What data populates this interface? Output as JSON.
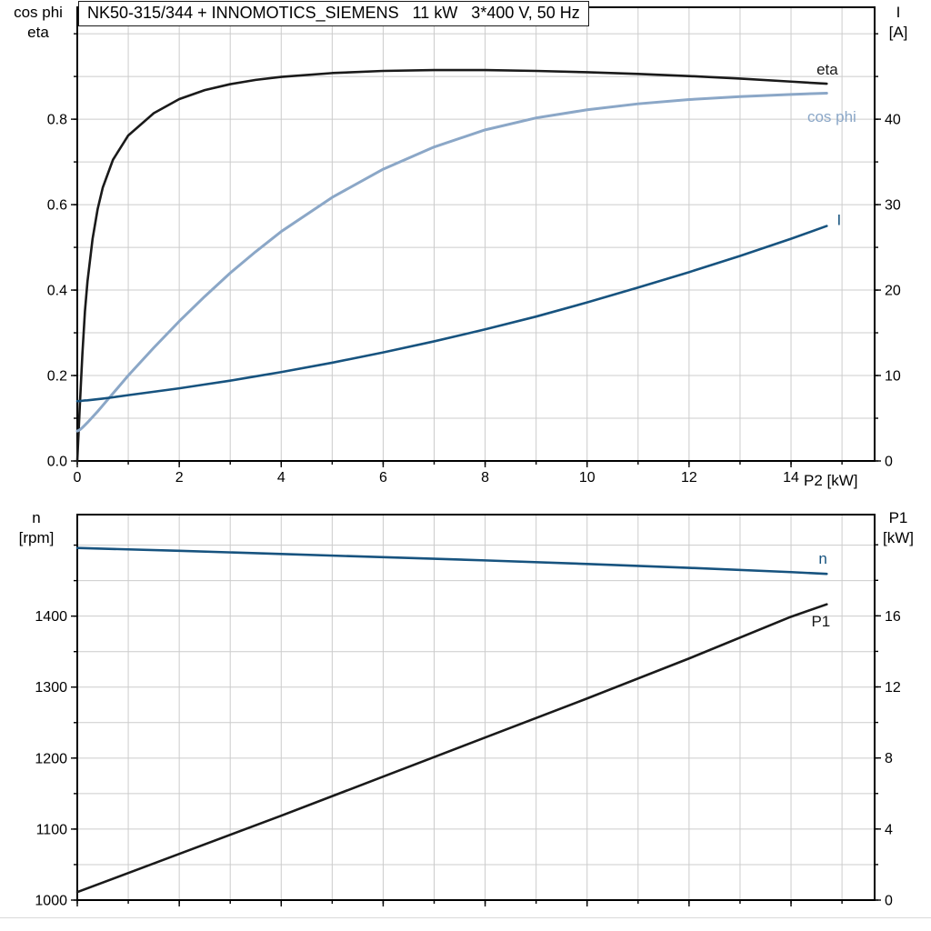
{
  "title_box": {
    "text": "NK50-315/344 + INNOMOTICS_SIEMENS   11 kW   3*400 V, 50 Hz"
  },
  "colors": {
    "eta": "#1a1a1a",
    "cos_phi": "#8BA7C7",
    "current": "#17537F",
    "speed": "#17537F",
    "p1": "#1a1a1a",
    "grid": "#cccccc",
    "frame": "#000000"
  },
  "chart_data": [
    {
      "type": "line",
      "title": "NK50-315/344 + INNOMOTICS_SIEMENS   11 kW   3*400 V, 50 Hz",
      "x_axis": {
        "label": "P2 [kW]",
        "range": [
          0,
          15.64
        ],
        "ticks": [
          0,
          2,
          4,
          6,
          8,
          10,
          12,
          14
        ],
        "tick_labels": [
          "0",
          "2",
          "4",
          "6",
          "8",
          "10",
          "12",
          "14"
        ],
        "minor_step": 1
      },
      "left_axis": {
        "line1": "cos phi",
        "line2": "eta",
        "range": [
          0,
          1.062
        ],
        "ticks": [
          0,
          0.2,
          0.4,
          0.6,
          0.8
        ],
        "tick_labels": [
          "0.0",
          "0.2",
          "0.4",
          "0.6",
          "0.8"
        ],
        "minor_step": 0.1
      },
      "right_axis": {
        "line1": "I",
        "line2": "[A]",
        "range": [
          0,
          53.1
        ],
        "ticks": [
          0,
          10,
          20,
          30,
          40
        ],
        "tick_labels": [
          "0",
          "10",
          "20",
          "30",
          "40"
        ],
        "minor_step": 5
      },
      "series": [
        {
          "name": "eta",
          "axis": "left",
          "color": "#1a1a1a",
          "width": 2.6,
          "label": "eta",
          "label_at": [
            14.5,
            0.905
          ],
          "x": [
            0,
            0.05,
            0.1,
            0.15,
            0.2,
            0.3,
            0.4,
            0.5,
            0.7,
            1,
            1.5,
            2,
            2.5,
            3,
            3.5,
            4,
            5,
            6,
            7,
            8,
            9,
            10,
            11,
            12,
            13,
            14,
            14.7
          ],
          "y": [
            0,
            0.13,
            0.25,
            0.35,
            0.42,
            0.52,
            0.59,
            0.64,
            0.705,
            0.762,
            0.814,
            0.847,
            0.868,
            0.882,
            0.892,
            0.899,
            0.908,
            0.913,
            0.915,
            0.915,
            0.913,
            0.91,
            0.906,
            0.901,
            0.895,
            0.888,
            0.883
          ]
        },
        {
          "name": "cos phi",
          "axis": "left",
          "color": "#8BA7C7",
          "width": 3,
          "label": "cos phi",
          "label_at": [
            14.32,
            0.794
          ],
          "x": [
            0,
            0.05,
            0.1,
            0.15,
            0.2,
            0.3,
            0.4,
            0.5,
            0.7,
            1,
            1.5,
            2,
            2.5,
            3,
            3.5,
            4,
            5,
            6,
            7,
            8,
            9,
            10,
            11,
            12,
            13,
            14,
            14.7
          ],
          "y": [
            0.07,
            0.073,
            0.078,
            0.084,
            0.09,
            0.103,
            0.116,
            0.13,
            0.158,
            0.2,
            0.265,
            0.327,
            0.385,
            0.44,
            0.49,
            0.537,
            0.617,
            0.683,
            0.735,
            0.775,
            0.803,
            0.822,
            0.836,
            0.846,
            0.853,
            0.858,
            0.861
          ]
        },
        {
          "name": "I",
          "axis": "right",
          "color": "#17537F",
          "width": 2.6,
          "label": "I",
          "label_at": [
            14.9,
            27.6
          ],
          "x": [
            0,
            0.05,
            0.1,
            0.15,
            0.2,
            0.3,
            0.4,
            0.5,
            0.7,
            1,
            1.5,
            2,
            2.5,
            3,
            3.5,
            4,
            5,
            6,
            7,
            8,
            9,
            10,
            11,
            12,
            13,
            14,
            14.7
          ],
          "y": [
            7.0,
            7.0,
            7.05,
            7.08,
            7.1,
            7.16,
            7.23,
            7.3,
            7.45,
            7.7,
            8.1,
            8.5,
            8.95,
            9.4,
            9.9,
            10.4,
            11.5,
            12.7,
            14.0,
            15.4,
            16.9,
            18.55,
            20.3,
            22.1,
            24.0,
            26.0,
            27.5
          ]
        }
      ]
    },
    {
      "type": "line",
      "title": "",
      "x_axis": {
        "label": "",
        "range": [
          0,
          15.64
        ],
        "ticks": [
          0,
          2,
          4,
          6,
          8,
          10,
          12,
          14
        ],
        "tick_labels": [],
        "minor_step": 1
      },
      "left_axis": {
        "line1": "n",
        "line2": "[rpm]",
        "range": [
          1000,
          1543
        ],
        "ticks": [
          1000,
          1100,
          1200,
          1300,
          1400
        ],
        "tick_labels": [
          "1000",
          "1100",
          "1200",
          "1300",
          "1400"
        ],
        "minor_step": 50
      },
      "right_axis": {
        "line1": "P1",
        "line2": "[kW]",
        "range": [
          0,
          21.7
        ],
        "ticks": [
          0,
          4,
          8,
          12,
          16
        ],
        "tick_labels": [
          "0",
          "4",
          "8",
          "12",
          "16"
        ],
        "minor_step": 2
      },
      "series": [
        {
          "name": "n",
          "axis": "left",
          "color": "#17537F",
          "width": 2.6,
          "label": "n",
          "label_at": [
            14.54,
            1474
          ],
          "x": [
            0,
            2,
            4,
            6,
            8,
            10,
            12,
            14,
            14.7
          ],
          "y": [
            1496,
            1492,
            1487.5,
            1483,
            1478.5,
            1473.5,
            1468,
            1462,
            1459.5
          ]
        },
        {
          "name": "P1",
          "axis": "right",
          "color": "#1a1a1a",
          "width": 2.6,
          "label": "P1",
          "label_at": [
            14.4,
            15.4
          ],
          "x": [
            0,
            2,
            4,
            6,
            8,
            10,
            12,
            14,
            14.7
          ],
          "y": [
            0.45,
            2.6,
            4.75,
            6.95,
            9.15,
            11.35,
            13.6,
            15.95,
            16.65
          ]
        }
      ]
    }
  ]
}
